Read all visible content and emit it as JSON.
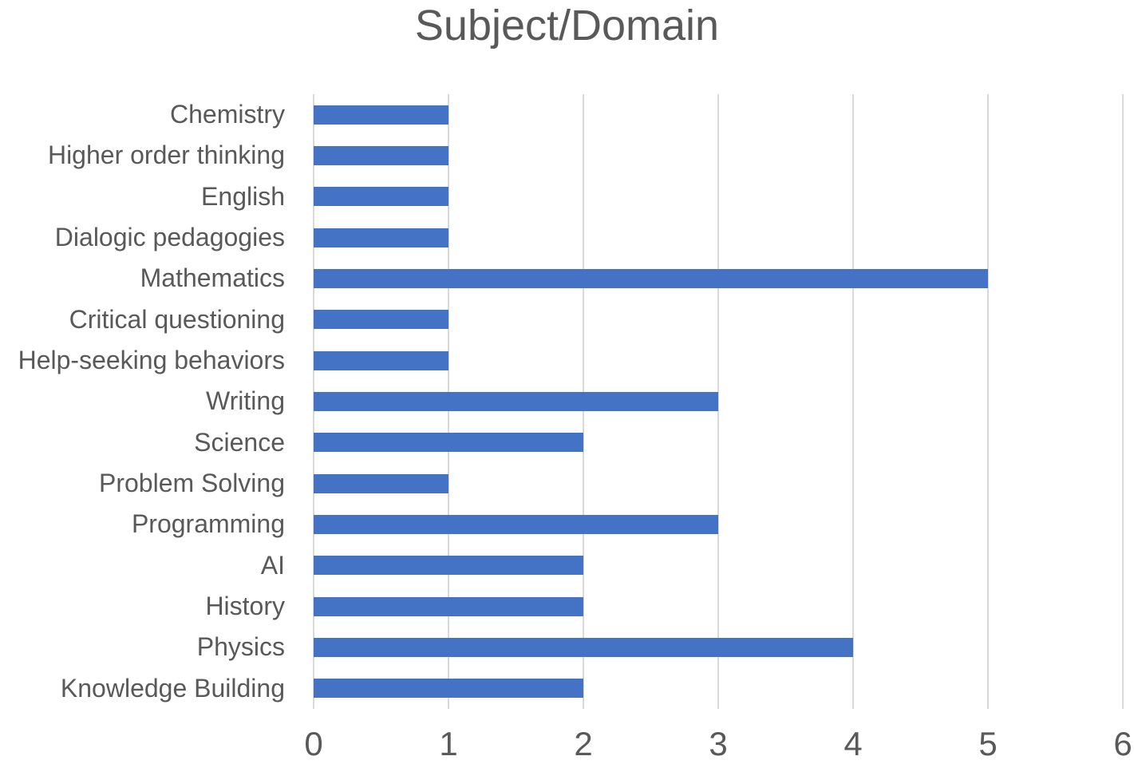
{
  "chart_data": {
    "type": "bar",
    "orientation": "horizontal",
    "title": "Subject/Domain",
    "categories": [
      "Chemistry",
      "Higher order thinking",
      "English",
      "Dialogic pedagogies",
      "Mathematics",
      "Critical questioning",
      "Help-seeking behaviors",
      "Writing",
      "Science",
      "Problem Solving",
      "Programming",
      "AI",
      "History",
      "Physics",
      "Knowledge Building"
    ],
    "values": [
      1,
      1,
      1,
      1,
      5,
      1,
      1,
      3,
      2,
      1,
      3,
      2,
      2,
      4,
      2
    ],
    "x_ticks": [
      "0",
      "1",
      "2",
      "3",
      "4",
      "5",
      "6"
    ],
    "xlim": [
      0,
      6
    ],
    "xlabel": "",
    "ylabel": "",
    "grid": "vertical-gridlines-on",
    "legend": "none",
    "colors": {
      "bar": "#4472C4",
      "gridline": "#D9D9D9",
      "axis_text": "#595959",
      "title_text": "#595959",
      "background": "#FFFFFF"
    }
  }
}
